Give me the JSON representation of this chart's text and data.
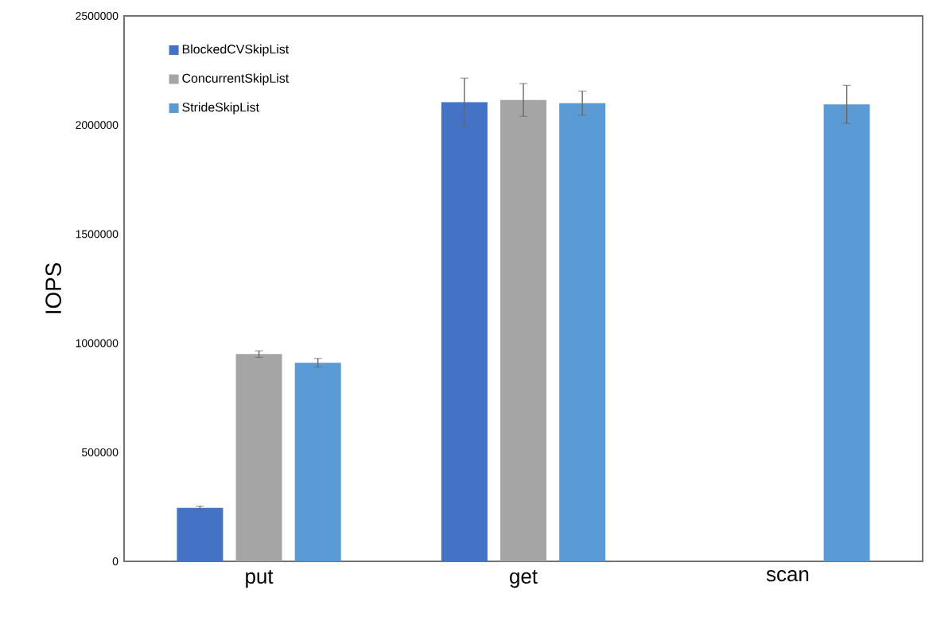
{
  "chart_data": {
    "type": "bar",
    "ylabel": "IOPS",
    "categories": [
      "put",
      "get",
      "scan"
    ],
    "series": [
      {
        "name": "BlockedCVSkipList",
        "color": "#4472c4",
        "values": [
          245000,
          2105000,
          0
        ],
        "errors": [
          8000,
          110000,
          null
        ]
      },
      {
        "name": "ConcurrentSkipList",
        "color": "#a5a5a5",
        "values": [
          950000,
          2115000,
          0
        ],
        "errors": [
          15000,
          75000,
          null
        ]
      },
      {
        "name": "StrideSkipList",
        "color": "#5b9bd5",
        "values": [
          910000,
          2100000,
          2095000
        ],
        "errors": [
          20000,
          55000,
          87000
        ]
      }
    ],
    "ylim": [
      0,
      2500000
    ],
    "yticks": [
      0,
      500000,
      1000000,
      1500000,
      2000000,
      2500000
    ],
    "grid": false,
    "legend": "top left"
  }
}
